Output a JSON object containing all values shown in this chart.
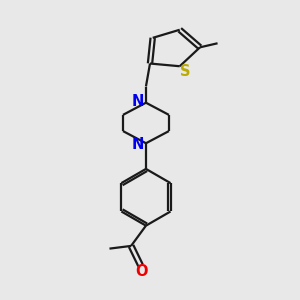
{
  "bg_color": "#e8e8e8",
  "bond_color": "#1a1a1a",
  "n_color": "#0000ee",
  "s_color": "#bbaa00",
  "o_color": "#ee0000",
  "line_width": 1.6,
  "font_size": 10.5,
  "xlim": [
    0,
    10
  ],
  "ylim": [
    0,
    11
  ]
}
